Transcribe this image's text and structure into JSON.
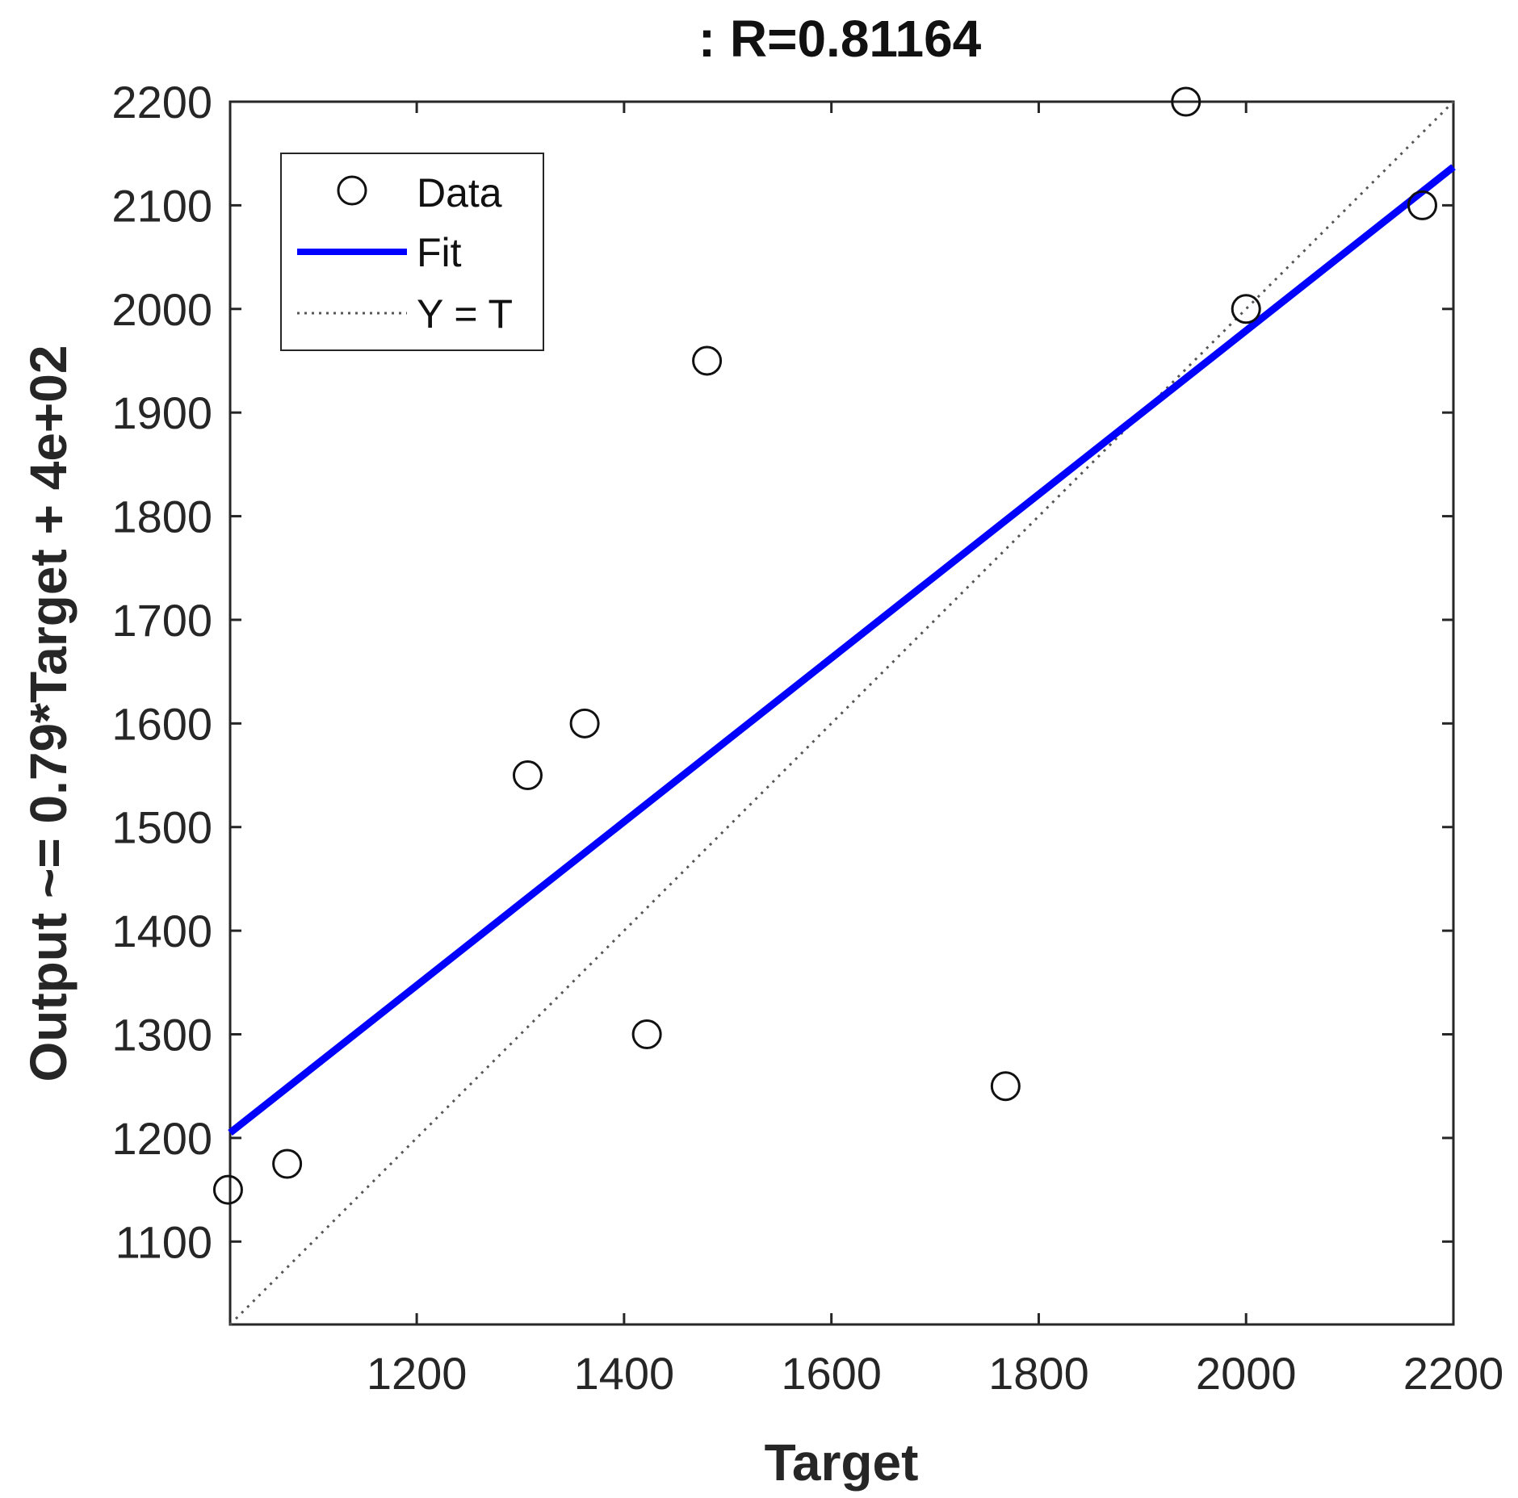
{
  "chart_data": {
    "type": "scatter",
    "title": ": R=0.81164",
    "xlabel": "Target",
    "ylabel": "Output ~= 0.79*Target + 4e+02",
    "xlim": [
      1020,
      2200
    ],
    "ylim": [
      1020,
      2200
    ],
    "x_ticks": [
      1200,
      1400,
      1600,
      1800,
      2000,
      2200
    ],
    "y_ticks": [
      1100,
      1200,
      1300,
      1400,
      1500,
      1600,
      1700,
      1800,
      1900,
      2000,
      2100,
      2200
    ],
    "grid": false,
    "legend": {
      "position": "top-left",
      "entries": [
        "Data",
        "Fit",
        "Y = T"
      ]
    },
    "series": [
      {
        "name": "Data",
        "kind": "markers",
        "color": "#111111",
        "points": [
          [
            1018,
            1150
          ],
          [
            1075,
            1175
          ],
          [
            1307,
            1550
          ],
          [
            1362,
            1600
          ],
          [
            1422,
            1300
          ],
          [
            1480,
            1950
          ],
          [
            1768,
            1250
          ],
          [
            1942,
            2200
          ],
          [
            2000,
            2000
          ],
          [
            2170,
            2100
          ]
        ]
      },
      {
        "name": "Fit",
        "kind": "line",
        "color": "#0000ff",
        "points": [
          [
            1020,
            1205
          ],
          [
            2200,
            2137
          ]
        ]
      },
      {
        "name": "Y = T",
        "kind": "dotted-line",
        "color": "#555555",
        "points": [
          [
            1020,
            1020
          ],
          [
            2200,
            2200
          ]
        ]
      }
    ]
  }
}
